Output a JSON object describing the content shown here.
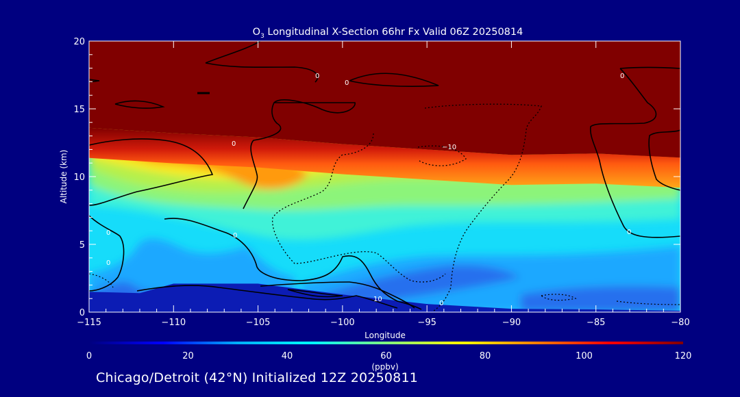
{
  "chart_data": {
    "type": "contour",
    "title_prefix": "O",
    "title_subscript": "3",
    "title_rest": " Longitudinal X-Section 66hr  Fx Valid 06Z 20250814",
    "xlabel": "Longitude",
    "ylabel": "Altitude (km)",
    "xlim": [
      -115,
      -80
    ],
    "ylim": [
      0,
      20
    ],
    "x_ticks": [
      -115,
      -110,
      -105,
      -100,
      -95,
      -90,
      -85,
      -80
    ],
    "x_tick_labels": [
      "−115",
      "−110",
      "−105",
      "−100",
      "−95",
      "−90",
      "−85",
      "−80"
    ],
    "y_ticks": [
      0,
      5,
      10,
      15,
      20
    ],
    "y_tick_labels": [
      "0",
      "5",
      "10",
      "15",
      "20"
    ],
    "colorbar": {
      "min": 0,
      "max": 120,
      "ticks": [
        0,
        20,
        40,
        60,
        80,
        100,
        120
      ],
      "tick_labels": [
        "0",
        "20",
        "40",
        "60",
        "80",
        "100",
        "120"
      ],
      "units": "(ppbv)",
      "colors": [
        "#00007f",
        "#0000ff",
        "#00b0ff",
        "#00ffff",
        "#80ff80",
        "#ffff00",
        "#ff8000",
        "#ff0000",
        "#800000"
      ]
    },
    "field_colors": {
      "stratosphere": "#800000",
      "tropopause_red": "#e8200a",
      "orange": "#ff9a10",
      "yellow": "#f8ea20",
      "green_yellow": "#b6f04c",
      "light_green": "#8cf47a",
      "aqua": "#3ff2d8",
      "cyan": "#16dcfa",
      "sky": "#1aa8ff",
      "blue": "#2670ee",
      "terrain": "#0c1cb4"
    },
    "contour_labels": [
      "0",
      "0",
      "0",
      "0",
      "0",
      "0",
      "0",
      "0",
      "−10",
      "10"
    ],
    "tropopause_altitude_km": {
      "longitude": [
        -115,
        -110,
        -105,
        -100,
        -95,
        -90,
        -85,
        -80
      ],
      "altitude": [
        13.6,
        13.2,
        12.9,
        12.4,
        12.0,
        11.6,
        11.7,
        11.4
      ]
    },
    "surface_altitude_km": {
      "longitude": [
        -115,
        -112,
        -110,
        -105,
        -100,
        -95,
        -90,
        -85,
        -80
      ],
      "altitude": [
        1.5,
        1.4,
        2.1,
        2.1,
        1.3,
        0.6,
        0.25,
        0.2,
        0.1
      ]
    },
    "footer": "Chicago/Detroit (42°N) Initialized 12Z 20250811"
  }
}
